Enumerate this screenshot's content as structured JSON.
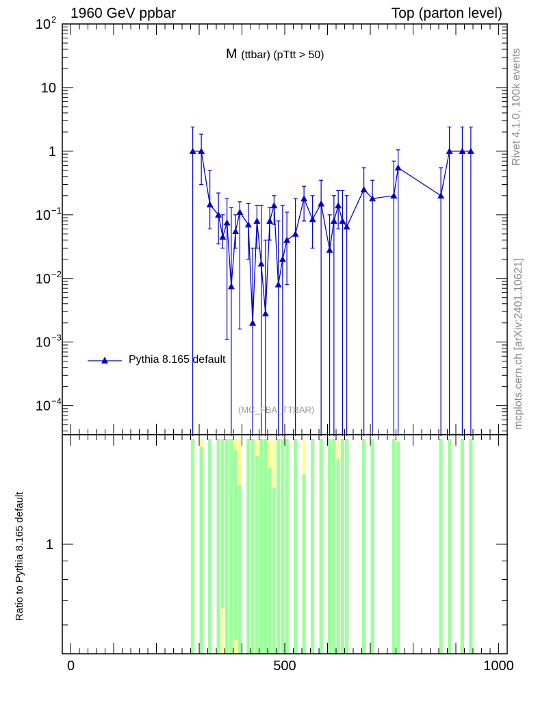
{
  "header": {
    "left": "1960 GeV ppbar",
    "right": "Top (parton level)"
  },
  "side_text": {
    "rivet": "Rivet 4.1.0,  100k events",
    "mcplots": "mcplots.cern.ch [arXiv:2401.10621]"
  },
  "plot_title": {
    "main": "M",
    "sub": "(ttbar) (pTtt > 50)"
  },
  "analysis_id": "(MC_FBA_TTBAR)",
  "ratio_ylabel": "Ratio to Pythia 8.165 default",
  "colors": {
    "series": "#0000cc",
    "band_inner": "#9eff9e",
    "band_outer": "#ffff99"
  },
  "chart_data": {
    "type": "line",
    "xlim": [
      -20,
      1020
    ],
    "ylim": [
      3.5e-05,
      100
    ],
    "y_scale": "log",
    "x_ticks": [
      0,
      500,
      1000
    ],
    "x_tick_labels": [
      "0",
      "500",
      "1000"
    ],
    "y_ticks": [
      {
        "value": 100,
        "base": "10",
        "exp": "2"
      },
      {
        "value": 10,
        "base": "10",
        "exp": ""
      },
      {
        "value": 1,
        "base": "1",
        "exp": ""
      },
      {
        "value": 0.1,
        "base": "10",
        "exp": "−1"
      },
      {
        "value": 0.01,
        "base": "10",
        "exp": "−2"
      },
      {
        "value": 0.001,
        "base": "10",
        "exp": "−3"
      },
      {
        "value": 0.0001,
        "base": "10",
        "exp": "−4"
      }
    ],
    "ratio_ylim": [
      0.5,
      2.0
    ],
    "ratio_y_ticks": [
      1
    ],
    "ratio_y_tick_labels": [
      "1"
    ],
    "legend": {
      "label": "Pythia 8.165 default",
      "position": "center-left"
    },
    "series": [
      {
        "name": "Pythia 8.165 default",
        "points": [
          {
            "x": 285,
            "y": 1.0,
            "up": 2.4,
            "down": 0.0
          },
          {
            "x": 305,
            "y": 1.0,
            "up": 1.85,
            "down": 0.3
          },
          {
            "x": 325,
            "y": 0.145,
            "up": 0.5,
            "down": 0.06
          },
          {
            "x": 345,
            "y": 0.1,
            "up": 0.22,
            "down": 0.035
          },
          {
            "x": 355,
            "y": 0.045,
            "up": 0.1,
            "down": 0.03
          },
          {
            "x": 365,
            "y": 0.075,
            "up": 0.18,
            "down": 0.0011
          },
          {
            "x": 375,
            "y": 0.0075,
            "up": 0.13,
            "down": 0.0
          },
          {
            "x": 385,
            "y": 0.055,
            "up": 0.1,
            "down": 0.03
          },
          {
            "x": 395,
            "y": 0.11,
            "up": 0.16,
            "down": 0.0016
          },
          {
            "x": 415,
            "y": 0.07,
            "up": 0.15,
            "down": 0.02
          },
          {
            "x": 425,
            "y": 0.002,
            "up": 0.03,
            "down": 0.0
          },
          {
            "x": 435,
            "y": 0.08,
            "up": 0.14,
            "down": 0.03
          },
          {
            "x": 445,
            "y": 0.017,
            "up": 0.14,
            "down": 0.0
          },
          {
            "x": 455,
            "y": 0.0028,
            "up": 0.04,
            "down": 0.0
          },
          {
            "x": 465,
            "y": 0.08,
            "up": 0.13,
            "down": 0.04
          },
          {
            "x": 475,
            "y": 0.14,
            "up": 0.2,
            "down": 0.07
          },
          {
            "x": 485,
            "y": 0.008,
            "up": 0.08,
            "down": 0.0
          },
          {
            "x": 495,
            "y": 0.02,
            "up": 0.14,
            "down": 0.0
          },
          {
            "x": 505,
            "y": 0.04,
            "up": 0.11,
            "down": 0.008
          },
          {
            "x": 525,
            "y": 0.05,
            "up": 0.18,
            "down": 0.0
          },
          {
            "x": 545,
            "y": 0.18,
            "up": 0.28,
            "down": 0.08
          },
          {
            "x": 565,
            "y": 0.085,
            "up": 0.2,
            "down": 0.03
          },
          {
            "x": 585,
            "y": 0.15,
            "up": 0.35,
            "down": 0.0
          },
          {
            "x": 605,
            "y": 0.028,
            "up": 0.1,
            "down": 0.0
          },
          {
            "x": 615,
            "y": 0.08,
            "up": 0.2,
            "down": 0.0
          },
          {
            "x": 625,
            "y": 0.14,
            "up": 0.24,
            "down": 0.06
          },
          {
            "x": 635,
            "y": 0.08,
            "up": 0.24,
            "down": 0.0
          },
          {
            "x": 645,
            "y": 0.065,
            "up": 0.2,
            "down": 0.0
          },
          {
            "x": 685,
            "y": 0.25,
            "up": 0.55,
            "down": 0.0
          },
          {
            "x": 705,
            "y": 0.18,
            "up": 0.35,
            "down": 0.0
          },
          {
            "x": 755,
            "y": 0.2,
            "up": 0.7,
            "down": 0.0
          },
          {
            "x": 765,
            "y": 0.55,
            "up": 1.05,
            "down": 0.0
          },
          {
            "x": 865,
            "y": 0.2,
            "up": 0.55,
            "down": 0.0
          },
          {
            "x": 885,
            "y": 1.0,
            "up": 2.4,
            "down": 0.0
          },
          {
            "x": 915,
            "y": 1.0,
            "up": 2.4,
            "down": 0.0
          },
          {
            "x": 935,
            "y": 1.0,
            "up": 2.4,
            "down": 0.0
          }
        ]
      }
    ]
  }
}
